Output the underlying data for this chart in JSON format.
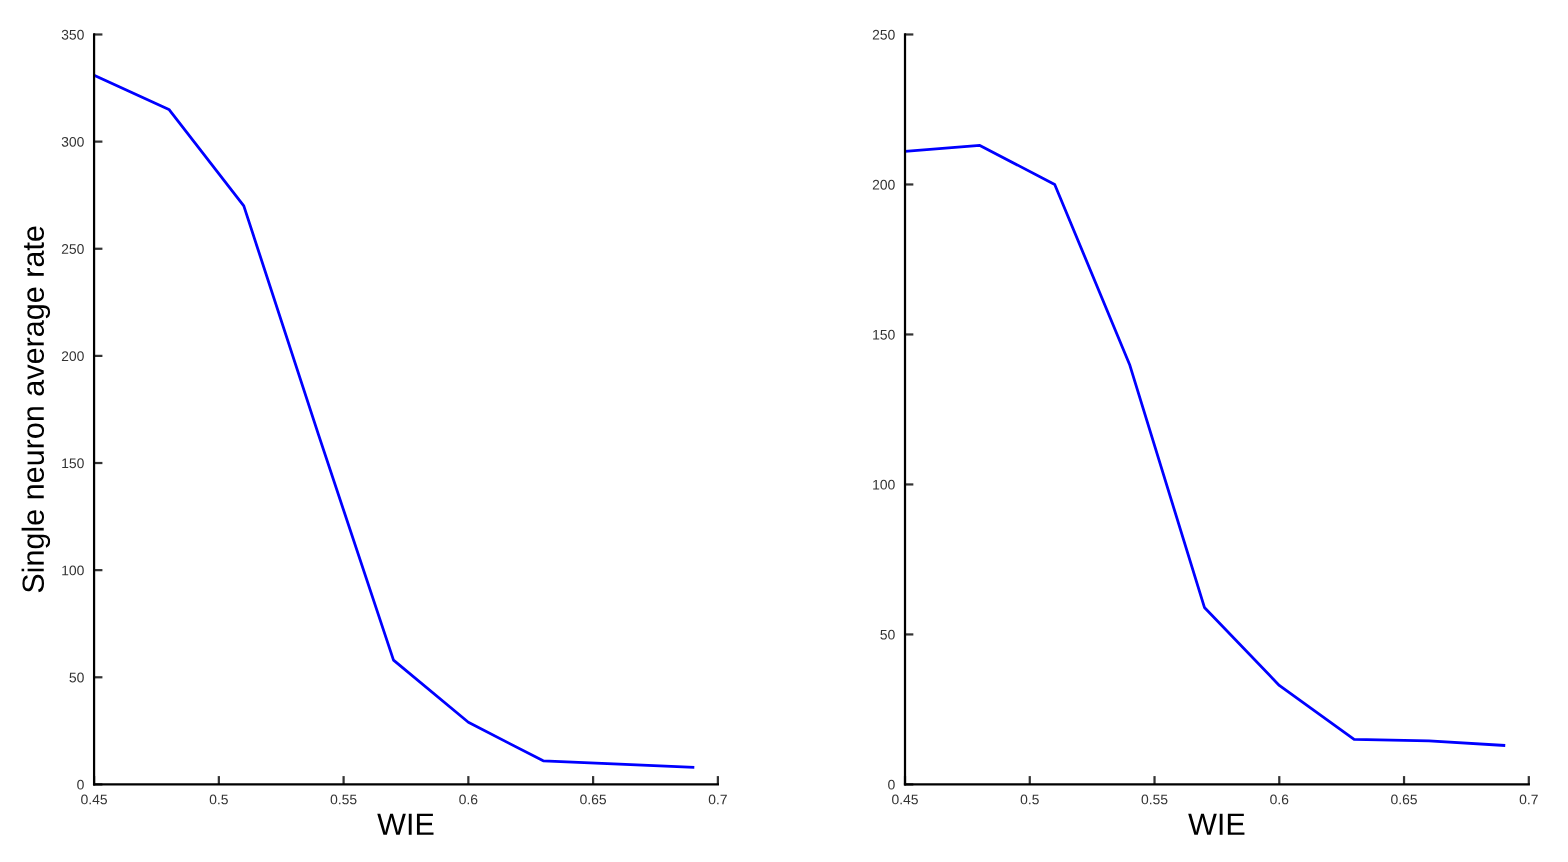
{
  "chart_data": [
    {
      "type": "line",
      "xlabel": "WIE",
      "ylabel": "Single neuron average rate",
      "xlim": [
        0.45,
        0.7
      ],
      "ylim": [
        0,
        350
      ],
      "xticks": [
        0.45,
        0.5,
        0.55,
        0.6,
        0.65,
        0.7
      ],
      "yticks": [
        0,
        50,
        100,
        150,
        200,
        250,
        300,
        350
      ],
      "grid": false,
      "legend": false,
      "series": [
        {
          "color": "#0000ff",
          "x": [
            0.45,
            0.48,
            0.51,
            0.54,
            0.57,
            0.6,
            0.63,
            0.69
          ],
          "values": [
            331,
            315,
            270,
            163,
            58,
            29,
            11,
            8
          ]
        }
      ]
    },
    {
      "type": "line",
      "xlabel": "WIE",
      "xlim": [
        0.45,
        0.7
      ],
      "ylim": [
        0,
        250
      ],
      "xticks": [
        0.45,
        0.5,
        0.55,
        0.6,
        0.65,
        0.7
      ],
      "yticks": [
        0,
        50,
        100,
        150,
        200,
        250
      ],
      "grid": false,
      "legend": false,
      "series": [
        {
          "color": "#0000ff",
          "x": [
            0.45,
            0.48,
            0.51,
            0.54,
            0.57,
            0.6,
            0.63,
            0.66,
            0.69
          ],
          "values": [
            211,
            213,
            200,
            140,
            59,
            33,
            15,
            14.5,
            13
          ]
        }
      ]
    }
  ]
}
